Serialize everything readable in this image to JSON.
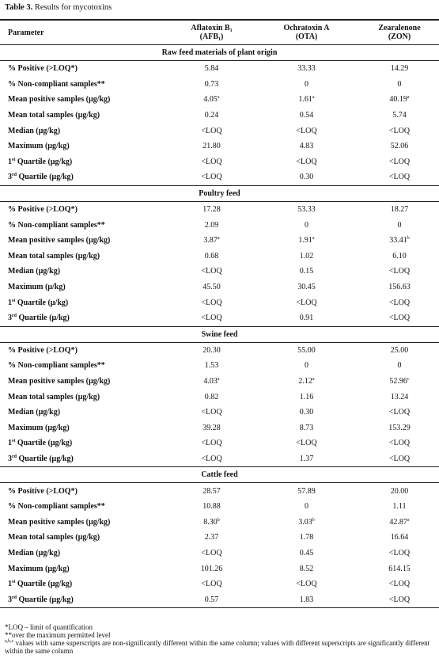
{
  "title": [
    {
      "b": "Table 3."
    },
    " Results for mycotoxins"
  ],
  "table": {
    "header": [
      "Parameter",
      {
        "lines": [
          [
            "Aflatoxin B",
            {
              "sub": "1"
            }
          ],
          [
            "(AFB",
            {
              "sub": "1"
            },
            ")"
          ]
        ]
      },
      {
        "lines": [
          [
            "Ochratoxin A"
          ],
          [
            "(OTA)"
          ]
        ]
      },
      {
        "lines": [
          [
            "Zearalenone"
          ],
          [
            "(ZON)"
          ]
        ]
      }
    ],
    "sections": [
      {
        "heading": "Raw feed materials of plant origin",
        "rows": [
          [
            "% Positive (>LOQ*)",
            "5.84",
            "33.33",
            "14.29"
          ],
          [
            "% Non-compliant samples**",
            "0.73",
            "0",
            "0"
          ],
          [
            "Mean positive samples (µg/kg)",
            [
              "4.05",
              {
                "sup": "a"
              }
            ],
            [
              "1.61",
              {
                "sup": "a"
              }
            ],
            [
              "40.19",
              {
                "sup": "a"
              }
            ]
          ],
          [
            "Mean total samples (µg/kg)",
            "0.24",
            "0.54",
            "5.74"
          ],
          [
            "Median (µg/kg)",
            "<LOQ",
            "<LOQ",
            "<LOQ"
          ],
          [
            "Maximum (µg/kg)",
            "21.80",
            "4.83",
            "52.06"
          ],
          [
            [
              "1",
              {
                "sup": "st"
              },
              " Quartile (µg/kg)"
            ],
            "<LOQ",
            "<LOQ",
            "<LOQ"
          ],
          [
            [
              "3",
              {
                "sup": "rd"
              },
              " Quartile (µg/kg)"
            ],
            "<LOQ",
            "0.30",
            "<LOQ"
          ]
        ]
      },
      {
        "heading": "Poultry feed",
        "rows": [
          [
            "% Positive (>LOQ*)",
            "17.28",
            "53.33",
            "18.27"
          ],
          [
            "% Non-compliant samples**",
            "2.09",
            "0",
            "0"
          ],
          [
            "Mean positive samples (µg/kg)",
            [
              "3.87",
              {
                "sup": "a"
              }
            ],
            [
              "1.91",
              {
                "sup": "a"
              }
            ],
            [
              "33.41",
              {
                "sup": "b"
              }
            ]
          ],
          [
            "Mean total samples (µg/kg)",
            "0.68",
            "1.02",
            "6.10"
          ],
          [
            "Median (µg/kg)",
            "<LOQ",
            "0.15",
            "<LOQ"
          ],
          [
            "Maximum (µ/kg)",
            "45.50",
            "30.45",
            "156.63"
          ],
          [
            [
              "1",
              {
                "sup": "st"
              },
              " Quartile (µ/kg)"
            ],
            "<LOQ",
            "<LOQ",
            "<LOQ"
          ],
          [
            [
              "3",
              {
                "sup": "rd"
              },
              " Quartile (µ/kg)"
            ],
            "<LOQ",
            "0.91",
            "<LOQ"
          ]
        ]
      },
      {
        "heading": "Swine feed",
        "rows": [
          [
            "% Positive (>LOQ*)",
            "20.30",
            "55.00",
            "25.00"
          ],
          [
            "% Non-compliant samples**",
            "1.53",
            "0",
            "0"
          ],
          [
            "Mean positive samples (µg/kg)",
            [
              "4.03",
              {
                "sup": "a"
              }
            ],
            [
              "2.12",
              {
                "sup": "a"
              }
            ],
            [
              "52.96",
              {
                "sup": "c"
              }
            ]
          ],
          [
            "Mean total samples (µg/kg)",
            "0.82",
            "1.16",
            "13.24"
          ],
          [
            "Median (µg/kg)",
            "<LOQ",
            "0.30",
            "<LOQ"
          ],
          [
            "Maximum (µg/kg)",
            "39.28",
            "8.73",
            "153.29"
          ],
          [
            [
              "1",
              {
                "sup": "st"
              },
              " Quartile (µg/kg)"
            ],
            "<LOQ",
            "<LOQ",
            "<LOQ"
          ],
          [
            [
              "3",
              {
                "sup": "rd"
              },
              " Quartile (µg/kg)"
            ],
            "<LOQ",
            "1.37",
            "<LOQ"
          ]
        ]
      },
      {
        "heading": "Cattle feed",
        "rows": [
          [
            "% Positive (>LOQ*)",
            "28.57",
            "57.89",
            "20.00"
          ],
          [
            "% Non-compliant samples**",
            "10.88",
            "0",
            "1.11"
          ],
          [
            "Mean positive samples (µg/kg)",
            [
              "8.30",
              {
                "sup": "b"
              }
            ],
            [
              "3.03",
              {
                "sup": "b"
              }
            ],
            [
              "42.87",
              {
                "sup": "a"
              }
            ]
          ],
          [
            "Mean total samples (µg/kg)",
            "2.37",
            "1.78",
            "16.64"
          ],
          [
            "Median (µg/kg)",
            "<LOQ",
            "0.45",
            "<LOQ"
          ],
          [
            "Maximum (µg/kg)",
            "101.26",
            "8.52",
            "614.15"
          ],
          [
            [
              "1",
              {
                "sup": "st"
              },
              " Quartile (µg/kg)"
            ],
            "<LOQ",
            "<LOQ",
            "<LOQ"
          ],
          [
            [
              "3",
              {
                "sup": "rd"
              },
              " Quartile (µg/kg)"
            ],
            "0.57",
            "1.83",
            "<LOQ"
          ]
        ]
      }
    ]
  },
  "footnotes": [
    "*LOQ – limit of quantification",
    "**over the maximum permitted level",
    [
      {
        "sup": "a,b,c"
      },
      " values with same superscripts are non-significantly different within the same column; values with different superscripts are significantly different within the same column"
    ]
  ]
}
